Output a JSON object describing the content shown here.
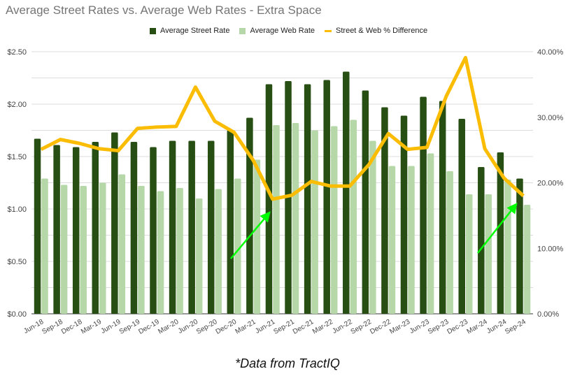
{
  "chart_data": {
    "type": "bar",
    "title": "Average Street Rates vs. Average Web Rates - Extra Space",
    "categories": [
      "Jun-18",
      "Sep-18",
      "Dec-18",
      "Mar-19",
      "Jun-19",
      "Sep-19",
      "Dec-19",
      "Mar-20",
      "Jun-20",
      "Sep-20",
      "Dec-20",
      "Mar-21",
      "Jun-21",
      "Sep-21",
      "Dec-21",
      "Mar-22",
      "Jun-22",
      "Sep-22",
      "Dec-22",
      "Mar-23",
      "Jun-23",
      "Sep-23",
      "Dec-23",
      "Mar-24",
      "Jun-24",
      "Sep-24"
    ],
    "series": [
      {
        "name": "Average Street Rate",
        "type": "bar",
        "axis": "left",
        "color": "#274e13",
        "values": [
          1.67,
          1.61,
          1.59,
          1.64,
          1.73,
          1.64,
          1.59,
          1.65,
          1.65,
          1.65,
          1.75,
          1.87,
          2.19,
          2.22,
          2.19,
          2.23,
          2.31,
          2.13,
          1.97,
          1.89,
          2.07,
          2.03,
          1.86,
          1.4,
          1.54,
          1.29
        ]
      },
      {
        "name": "Average Web Rate",
        "type": "bar",
        "axis": "left",
        "color": "#b6d7a8",
        "values": [
          1.29,
          1.23,
          1.22,
          1.25,
          1.33,
          1.22,
          1.17,
          1.2,
          1.1,
          1.19,
          1.29,
          1.47,
          1.8,
          1.82,
          1.75,
          1.79,
          1.85,
          1.65,
          1.41,
          1.41,
          1.53,
          1.36,
          1.14,
          1.14,
          1.28,
          1.04
        ]
      },
      {
        "name": "Street & Web % Difference",
        "type": "line",
        "axis": "right",
        "color": "#fbbc04",
        "values": [
          25.1,
          26.6,
          26.0,
          25.2,
          24.9,
          28.3,
          28.5,
          28.6,
          34.6,
          29.4,
          27.7,
          23.4,
          17.5,
          18.1,
          20.2,
          19.5,
          19.5,
          22.8,
          27.5,
          25.1,
          25.4,
          33.2,
          39.1,
          25.2,
          20.7,
          18.0
        ]
      }
    ],
    "ylim_left": [
      0,
      2.5
    ],
    "ylim_right": [
      0,
      40
    ],
    "yticks_left": [
      "$0.00",
      "$0.50",
      "$1.00",
      "$1.50",
      "$2.00",
      "$2.50"
    ],
    "yticks_right": [
      "0.00%",
      "10.00%",
      "20.00%",
      "30.00%",
      "40.00%"
    ],
    "legend": "top-center",
    "grid": true,
    "annotations": [
      {
        "type": "arrow",
        "color": "#00ff00",
        "from_category": "Mar-21",
        "to_category": "Jun-21"
      },
      {
        "type": "arrow",
        "color": "#00ff00",
        "from_category": "Jun-24",
        "to_category": "Sep-24"
      }
    ]
  },
  "footnote": "*Data from TractIQ"
}
